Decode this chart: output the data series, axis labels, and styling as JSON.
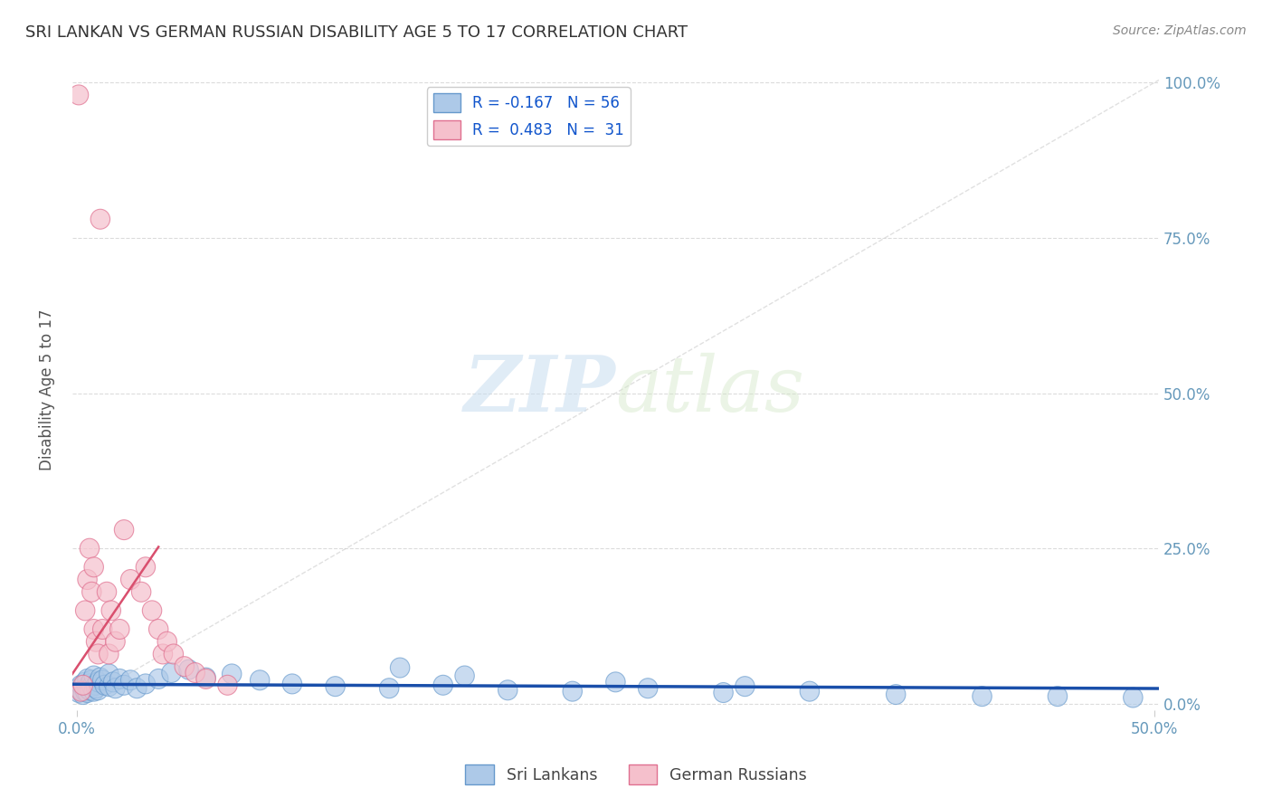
{
  "title": "SRI LANKAN VS GERMAN RUSSIAN DISABILITY AGE 5 TO 17 CORRELATION CHART",
  "source": "Source: ZipAtlas.com",
  "ylabel": "Disability Age 5 to 17",
  "xlim": [
    -0.002,
    0.502
  ],
  "ylim": [
    -0.01,
    1.02
  ],
  "xticks": [
    0.0,
    0.5
  ],
  "xticklabels": [
    "0.0%",
    "50.0%"
  ],
  "yticks": [
    0.0,
    0.25,
    0.5,
    0.75,
    1.0
  ],
  "yticklabels": [
    "0.0%",
    "25.0%",
    "50.0%",
    "75.0%",
    "100.0%"
  ],
  "watermark_zip": "ZIP",
  "watermark_atlas": "atlas",
  "sri_lankan_color": "#adc9e8",
  "sri_lankan_edge": "#6699cc",
  "german_russian_color": "#f5c0cc",
  "german_russian_edge": "#e07090",
  "sri_lankan_R": -0.167,
  "sri_lankan_N": 56,
  "german_russian_R": 0.483,
  "german_russian_N": 31,
  "sri_lankan_trend_color": "#1a4faa",
  "german_russian_trend_color": "#d94f6e",
  "ref_line_color": "#cccccc",
  "grid_color": "#cccccc",
  "title_color": "#333333",
  "axis_label_color": "#555555",
  "tick_color": "#6699bb",
  "legend_R_color": "#1155cc",
  "background_color": "#ffffff",
  "sri_lankans_x": [
    0.001,
    0.001,
    0.002,
    0.002,
    0.003,
    0.003,
    0.004,
    0.004,
    0.005,
    0.005,
    0.005,
    0.006,
    0.006,
    0.007,
    0.007,
    0.008,
    0.008,
    0.009,
    0.009,
    0.01,
    0.01,
    0.011,
    0.012,
    0.013,
    0.015,
    0.015,
    0.017,
    0.018,
    0.02,
    0.022,
    0.025,
    0.028,
    0.032,
    0.038,
    0.044,
    0.052,
    0.06,
    0.072,
    0.085,
    0.1,
    0.12,
    0.145,
    0.17,
    0.2,
    0.23,
    0.265,
    0.3,
    0.34,
    0.38,
    0.42,
    0.15,
    0.18,
    0.25,
    0.31,
    0.455,
    0.49
  ],
  "sri_lankans_y": [
    0.018,
    0.025,
    0.022,
    0.03,
    0.015,
    0.028,
    0.02,
    0.035,
    0.025,
    0.04,
    0.018,
    0.032,
    0.022,
    0.038,
    0.028,
    0.045,
    0.02,
    0.03,
    0.025,
    0.035,
    0.022,
    0.042,
    0.038,
    0.03,
    0.028,
    0.048,
    0.035,
    0.025,
    0.04,
    0.03,
    0.038,
    0.025,
    0.032,
    0.04,
    0.05,
    0.055,
    0.042,
    0.048,
    0.038,
    0.032,
    0.028,
    0.025,
    0.03,
    0.022,
    0.02,
    0.025,
    0.018,
    0.02,
    0.015,
    0.012,
    0.058,
    0.045,
    0.035,
    0.028,
    0.012,
    0.01
  ],
  "german_russians_x": [
    0.001,
    0.002,
    0.003,
    0.004,
    0.005,
    0.006,
    0.007,
    0.008,
    0.008,
    0.009,
    0.01,
    0.011,
    0.012,
    0.014,
    0.015,
    0.016,
    0.018,
    0.02,
    0.022,
    0.025,
    0.03,
    0.032,
    0.035,
    0.038,
    0.04,
    0.042,
    0.045,
    0.05,
    0.055,
    0.06,
    0.07
  ],
  "german_russians_y": [
    0.98,
    0.02,
    0.03,
    0.15,
    0.2,
    0.25,
    0.18,
    0.12,
    0.22,
    0.1,
    0.08,
    0.78,
    0.12,
    0.18,
    0.08,
    0.15,
    0.1,
    0.12,
    0.28,
    0.2,
    0.18,
    0.22,
    0.15,
    0.12,
    0.08,
    0.1,
    0.08,
    0.06,
    0.05,
    0.04,
    0.03
  ]
}
